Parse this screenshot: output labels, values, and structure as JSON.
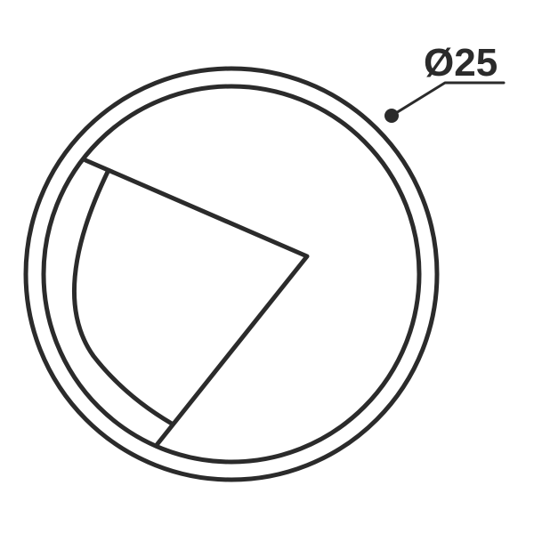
{
  "drawing": {
    "dimension_label": "Ø25",
    "line_color": "#2b2b2b"
  }
}
